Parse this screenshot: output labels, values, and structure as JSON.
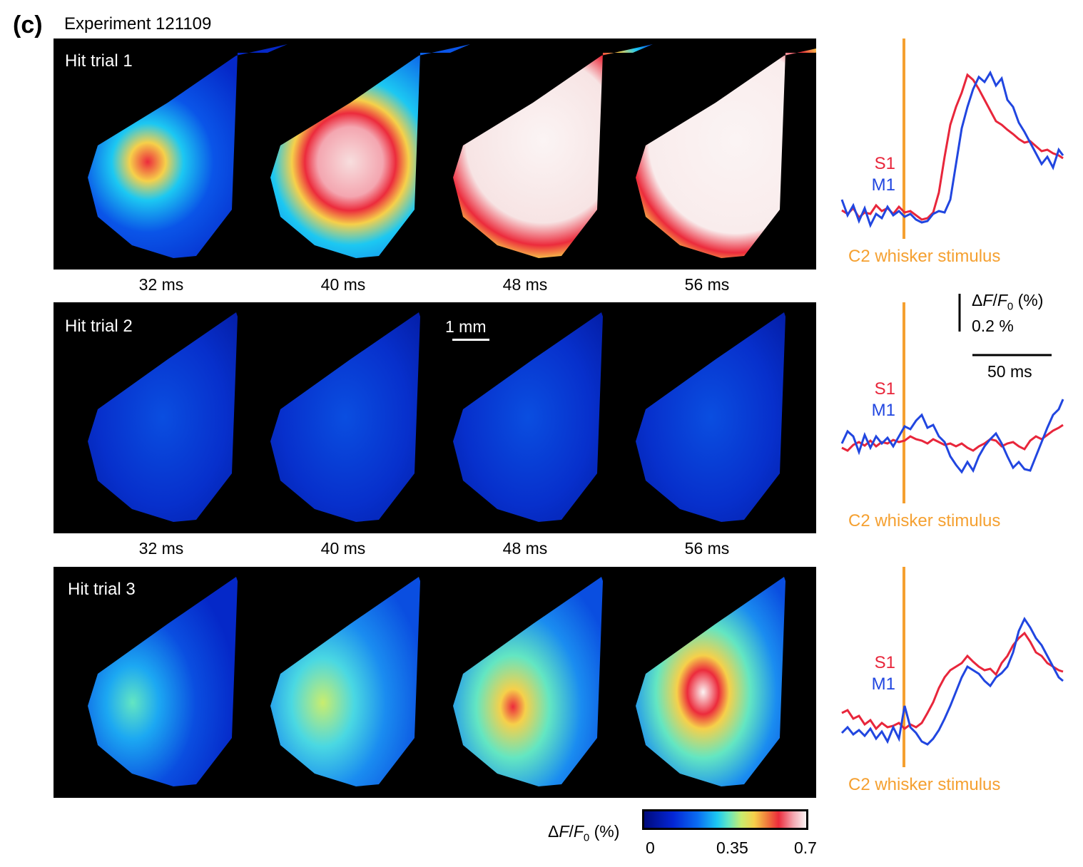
{
  "panel_letter": "(c)",
  "experiment_title": "Experiment 121109",
  "trials": [
    {
      "label": "Hit trial 1",
      "times": [
        "32 ms",
        "40 ms",
        "48 ms",
        "56 ms"
      ]
    },
    {
      "label": "Hit trial 2",
      "times": [
        "32 ms",
        "40 ms",
        "48 ms",
        "56 ms"
      ]
    },
    {
      "label": "Hit trial 3",
      "times": []
    }
  ],
  "map_scalebar_label": "1 mm",
  "traces": {
    "s1_label": "S1",
    "m1_label": "M1",
    "stimulus_label": "C2 whisker stimulus",
    "colors": {
      "s1": "#e8263b",
      "m1": "#2146e0",
      "stimulus": "#f5a030"
    }
  },
  "trace_scalebar": {
    "y_label": "ΔF/F0 (%)",
    "y_value": "0.2 %",
    "x_value": "50 ms"
  },
  "colorbar": {
    "title": "ΔF/F0 (%)",
    "ticks": [
      "0",
      "0.35",
      "0.7"
    ],
    "min": 0,
    "max": 0.7,
    "colormap": "jet-to-white"
  }
}
